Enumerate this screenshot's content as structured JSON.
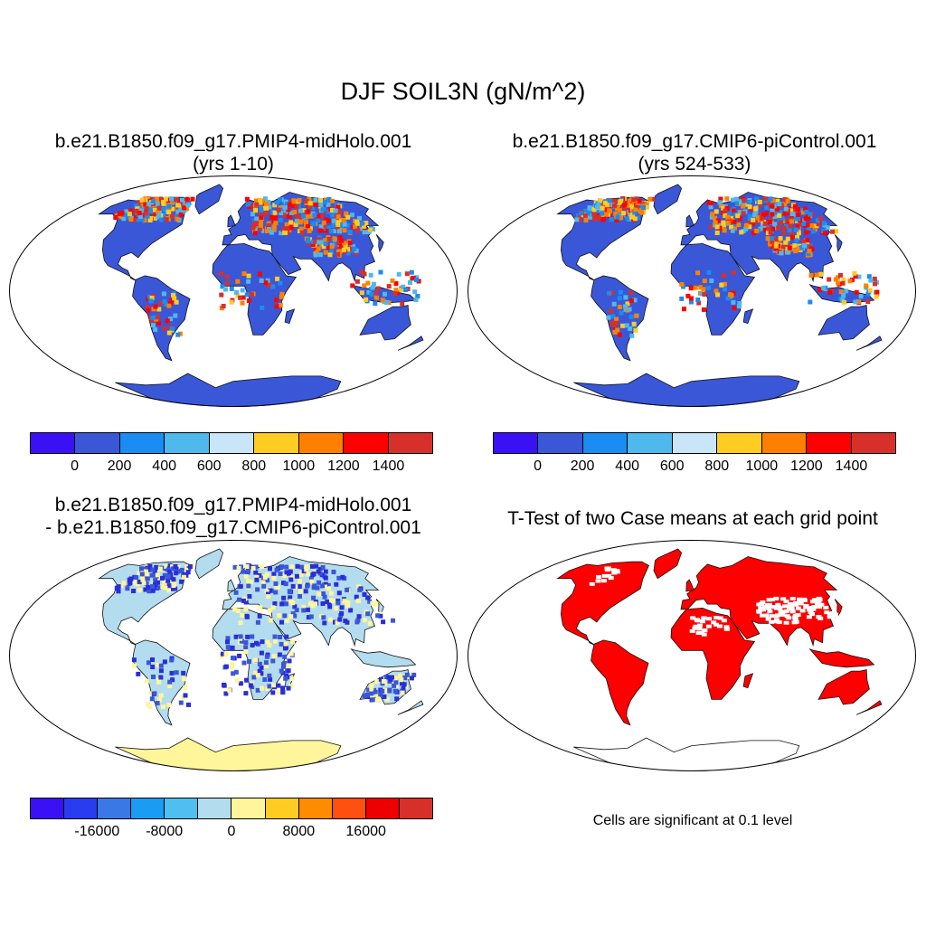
{
  "figure": {
    "title": "DJF SOIL3N (gN/m^2)",
    "panels": [
      {
        "id": "midholo",
        "title_line1": "b.e21.B1850.f09_g17.PMIP4-midHolo.001",
        "title_line2": "(yrs 1-10)",
        "land_fill": "#3a57d8",
        "hotspot_colors": [
          "#d7302a",
          "#ff0000",
          "#ff8000",
          "#ffcc22",
          "#4fb8ec",
          "#1a8cf2"
        ]
      },
      {
        "id": "picontrol",
        "title_line1": "b.e21.B1850.f09_g17.CMIP6-piControl.001",
        "title_line2": "(yrs 524-533)",
        "land_fill": "#3a57d8",
        "hotspot_colors": [
          "#d7302a",
          "#ff0000",
          "#ff8000",
          "#ffcc22",
          "#4fb8ec",
          "#1a8cf2"
        ]
      },
      {
        "id": "difference",
        "title_line1": "b.e21.B1850.f09_g17.PMIP4-midHolo.001",
        "title_line2": "- b.e21.B1850.f09_g17.CMIP6-piControl.001",
        "land_fill": "#b3dcef",
        "antarctica_fill": "#fff59a",
        "hotspot_colors": [
          "#fff59a",
          "#2a2ed8",
          "#3a57d8"
        ]
      },
      {
        "id": "ttest",
        "title_line1": "T-Test of two Case means at each grid point",
        "land_fill": "#ff0000",
        "note": "Cells are significant at 0.1 level"
      }
    ],
    "colorbar_top": {
      "colors": [
        "#3a10f5",
        "#3a57d8",
        "#1a8cf2",
        "#4fb8ec",
        "#c8e6f7",
        "#ffcc22",
        "#ff8000",
        "#ff0000",
        "#d7302a"
      ],
      "tick_labels": [
        "0",
        "200",
        "400",
        "600",
        "800",
        "1000",
        "1200",
        "1400"
      ]
    },
    "colorbar_diff": {
      "colors": [
        "#3a10f5",
        "#2a3cf0",
        "#3a78e6",
        "#1a9cf5",
        "#4fbff0",
        "#b3dcef",
        "#fff59a",
        "#ffcc22",
        "#ff8c00",
        "#ff5010",
        "#ee0000",
        "#d7302a"
      ],
      "tick_labels": [
        "-16000",
        "-8000",
        "0",
        "8000",
        "16000"
      ]
    }
  }
}
